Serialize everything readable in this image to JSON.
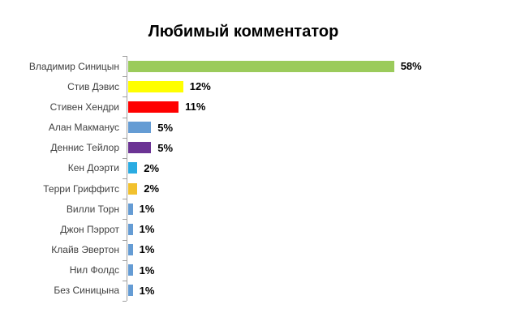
{
  "chart_data": {
    "type": "bar",
    "orientation": "horizontal",
    "title": "Любимый комментатор",
    "categories": [
      "Владимир Синицын",
      "Стив Дэвис",
      "Стивен Хендри",
      "Алан Макманус",
      "Деннис Тейлор",
      "Кен Доэрти",
      "Терри Гриффитс",
      "Вилли Торн",
      "Джон Пэррот",
      "Клайв Эвертон",
      "Нил Фолдс",
      "Без Синицына"
    ],
    "values": [
      58,
      12,
      11,
      5,
      5,
      2,
      2,
      1,
      1,
      1,
      1,
      1
    ],
    "value_labels": [
      "58%",
      "12%",
      "11%",
      "5%",
      "5%",
      "2%",
      "2%",
      "1%",
      "1%",
      "1%",
      "1%",
      "1%"
    ],
    "bar_colors": [
      "#9bcb5b",
      "#ffff00",
      "#ff0000",
      "#659cd4",
      "#6b3394",
      "#29abe2",
      "#f2c12e",
      "#659cd4",
      "#659cd4",
      "#659cd4",
      "#659cd4",
      "#659cd4"
    ],
    "xlabel": "",
    "ylabel": "",
    "xlim": [
      0,
      85
    ],
    "grid": false,
    "legend": false,
    "colors": {
      "axis": "#9e9e9e",
      "category_label": "#3f3f3f",
      "value_label": "#000000",
      "background": "#ffffff"
    }
  }
}
